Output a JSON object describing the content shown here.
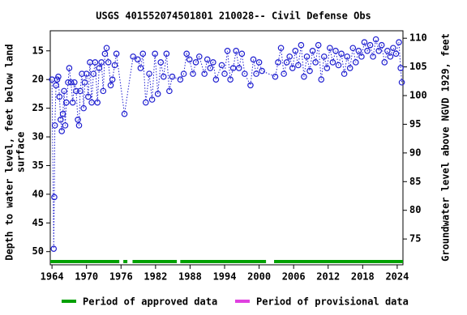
{
  "chart_data": {
    "type": "scatter",
    "title": "USGS 401552074501801 210028-- Civil Defense Obs",
    "ylabel": [
      "Depth to water level, feet below land",
      "surface"
    ],
    "y2label": "Groundwater level above NGVD 1929, feet",
    "xlim": [
      1963.7,
      2025.0
    ],
    "xticks": [
      1964,
      1970,
      1976,
      1982,
      1988,
      1994,
      2000,
      2006,
      2012,
      2018,
      2024
    ],
    "ylim": [
      11.5,
      52.3
    ],
    "yticks": [
      15,
      20,
      25,
      30,
      35,
      40,
      45,
      50
    ],
    "y_inverted": true,
    "y2lim": [
      111.3,
      70.5
    ],
    "y2ticks": [
      75,
      80,
      85,
      90,
      95,
      100,
      105,
      110
    ],
    "series": [
      {
        "name": "Depth to water level",
        "color": "#1f1fd0",
        "x": [
          1964.0,
          1964.3,
          1964.4,
          1964.5,
          1964.7,
          1964.9,
          1965.1,
          1965.3,
          1965.5,
          1965.7,
          1965.9,
          1966.1,
          1966.3,
          1966.5,
          1966.8,
          1967.0,
          1967.3,
          1967.6,
          1967.9,
          1968.2,
          1968.5,
          1968.7,
          1968.9,
          1969.2,
          1969.5,
          1969.7,
          1970.0,
          1970.3,
          1970.6,
          1970.9,
          1971.2,
          1971.5,
          1971.9,
          1972.2,
          1972.6,
          1972.9,
          1973.2,
          1973.5,
          1973.8,
          1974.2,
          1974.5,
          1974.9,
          1975.2,
          1976.6,
          1978.1,
          1978.9,
          1979.4,
          1979.8,
          1980.3,
          1980.9,
          1981.4,
          1981.9,
          1982.4,
          1982.9,
          1983.4,
          1983.9,
          1984.4,
          1984.9,
          1986.3,
          1986.9,
          1987.4,
          1987.9,
          1988.5,
          1989.0,
          1989.6,
          1990.5,
          1991.0,
          1991.5,
          1992.0,
          1992.5,
          1993.5,
          1994.0,
          1994.5,
          1995.0,
          1995.5,
          1996.0,
          1996.5,
          1997.0,
          1997.5,
          1998.5,
          1999.0,
          1999.5,
          2000.0,
          2000.5,
          2002.8,
          2003.3,
          2003.8,
          2004.3,
          2004.8,
          2005.3,
          2005.8,
          2006.3,
          2006.8,
          2007.3,
          2007.8,
          2008.3,
          2008.8,
          2009.3,
          2009.8,
          2010.3,
          2010.8,
          2011.3,
          2011.8,
          2012.3,
          2012.8,
          2013.3,
          2013.8,
          2014.3,
          2014.8,
          2015.3,
          2015.8,
          2016.3,
          2016.8,
          2017.3,
          2017.8,
          2018.3,
          2018.8,
          2019.3,
          2019.8,
          2020.3,
          2020.8,
          2021.3,
          2021.8,
          2022.3,
          2022.8,
          2023.3,
          2023.8,
          2024.3,
          2024.6,
          2024.8
        ],
        "values": [
          20,
          49.5,
          40.5,
          28,
          21,
          20,
          19.5,
          23,
          27,
          29,
          26,
          22,
          28,
          24,
          20.5,
          18,
          20.5,
          24,
          20.5,
          22,
          27,
          28,
          22,
          19,
          25,
          20.5,
          19,
          23,
          17,
          24,
          19,
          17,
          24,
          18,
          17,
          22,
          15.5,
          14.5,
          17,
          21,
          20,
          17.5,
          15.5,
          26,
          16,
          16.5,
          18,
          15.5,
          24,
          19,
          23.5,
          15.5,
          22.5,
          17,
          19.5,
          15.5,
          22,
          19.5,
          20,
          19,
          15.5,
          16.5,
          19,
          17,
          16,
          19,
          16.5,
          18,
          17,
          20,
          17.5,
          19,
          15,
          20,
          18,
          15,
          18,
          15.5,
          19,
          21,
          16.5,
          19,
          17,
          18.5,
          19.5,
          17,
          14.5,
          19,
          17,
          16,
          18,
          15,
          17.5,
          14,
          19.5,
          16,
          18.5,
          15,
          17,
          14,
          20,
          16,
          18,
          14.5,
          17,
          15,
          17.5,
          15.5,
          19,
          16,
          18,
          14.5,
          17,
          15,
          16,
          13.5,
          15,
          14,
          16,
          13,
          15,
          14,
          17,
          15,
          16,
          14.5,
          15.5,
          13.5,
          18,
          20.5
        ]
      }
    ],
    "approved_periods": [
      [
        1963.7,
        1975.7
      ],
      [
        1976.4,
        1977.1
      ],
      [
        1978.0,
        1985.7
      ],
      [
        1986.3,
        2001.2
      ],
      [
        2002.6,
        2025.0
      ]
    ],
    "legend": [
      {
        "name": "Period of approved data",
        "color": "#00a000"
      },
      {
        "name": "Period of provisional data",
        "color": "#e040e0"
      }
    ]
  }
}
